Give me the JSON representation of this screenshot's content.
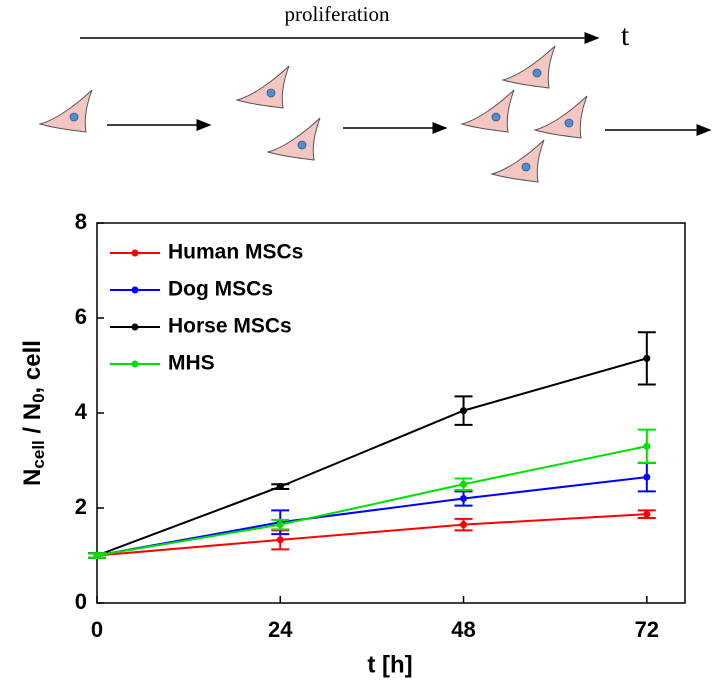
{
  "diagram": {
    "label": "proliferation",
    "axis": "t"
  },
  "chart_data": {
    "type": "line",
    "xlabel": "t [h]",
    "ylabel": [
      "N",
      "cell",
      " / N",
      "0",
      ", cell"
    ],
    "x": [
      0,
      24,
      48,
      72
    ],
    "xlim": [
      0,
      77
    ],
    "ylim": [
      0,
      8
    ],
    "xticks": [
      0,
      24,
      48,
      72
    ],
    "yticks": [
      0,
      2,
      4,
      6,
      8
    ],
    "legend": "upper left",
    "series": [
      {
        "name": "Human MSCs",
        "color": "#ff0000",
        "values": [
          1.0,
          1.33,
          1.65,
          1.87
        ],
        "errors": [
          0.05,
          0.2,
          0.12,
          0.08
        ]
      },
      {
        "name": "Dog MSCs",
        "color": "#0000ff",
        "values": [
          1.0,
          1.7,
          2.2,
          2.65
        ],
        "errors": [
          0.05,
          0.25,
          0.15,
          0.3
        ]
      },
      {
        "name": "Horse MSCs",
        "color": "#000000",
        "values": [
          1.0,
          2.45,
          4.05,
          5.15
        ],
        "errors": [
          0.05,
          0.05,
          0.3,
          0.55
        ]
      },
      {
        "name": "MHS",
        "color": "#00e000",
        "values": [
          1.0,
          1.65,
          2.5,
          3.3
        ],
        "errors": [
          0.05,
          0.1,
          0.12,
          0.35
        ]
      }
    ]
  }
}
